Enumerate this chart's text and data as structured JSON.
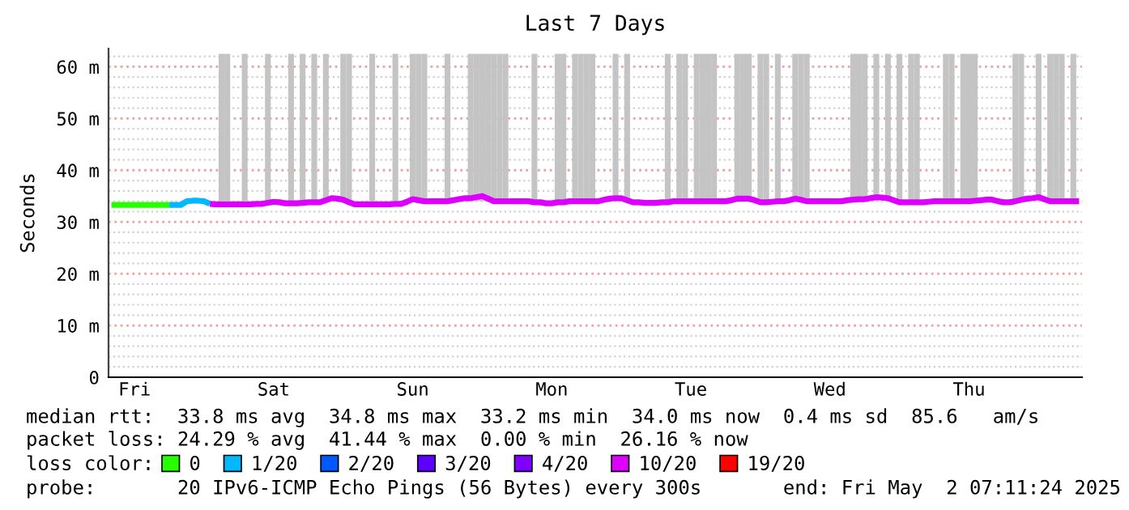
{
  "chart_data": {
    "type": "line",
    "title": "Last 7 Days",
    "ylabel": "Seconds",
    "legend_title": "loss color:",
    "categories": [
      null,
      null,
      null,
      null,
      "Fri",
      null,
      null,
      null,
      null,
      null,
      null,
      null,
      null,
      null,
      null,
      null,
      null,
      null,
      null,
      null,
      null,
      null,
      null,
      null,
      null,
      null,
      null,
      null,
      "Sat",
      null,
      null,
      null,
      null,
      null,
      null,
      null,
      null,
      null,
      null,
      null,
      null,
      null,
      null,
      null,
      null,
      null,
      null,
      null,
      null,
      null,
      null,
      null,
      "Sun",
      null,
      null,
      null,
      null,
      null,
      null,
      null,
      null,
      null,
      null,
      null,
      null,
      null,
      null,
      null,
      null,
      null,
      null,
      null,
      null,
      null,
      null,
      null,
      "Mon",
      null,
      null,
      null,
      null,
      null,
      null,
      null,
      null,
      null,
      null,
      null,
      null,
      null,
      null,
      null,
      null,
      null,
      null,
      null,
      null,
      null,
      null,
      null,
      "Tue",
      null,
      null,
      null,
      null,
      null,
      null,
      null,
      null,
      null,
      null,
      null,
      null,
      null,
      null,
      null,
      null,
      null,
      null,
      null,
      null,
      null,
      null,
      null,
      "Wed",
      null,
      null,
      null,
      null,
      null,
      null,
      null,
      null,
      null,
      null,
      null,
      null,
      null,
      null,
      null,
      null,
      null,
      null,
      null,
      null,
      null,
      null,
      null,
      "Thu",
      null,
      null,
      null,
      null,
      null,
      null,
      null,
      null,
      null,
      null,
      null,
      null,
      null,
      null,
      null,
      null,
      null,
      null,
      null
    ],
    "ylim": [
      0,
      63.5
    ],
    "yticks": [
      0,
      {
        "value": 2,
        "label": null
      },
      {
        "value": 4,
        "label": null
      },
      {
        "value": 6,
        "label": null
      },
      {
        "value": 8,
        "label": null
      },
      {
        "value": 10,
        "label": "10 m"
      },
      {
        "value": 12,
        "label": null
      },
      {
        "value": 14,
        "label": null
      },
      {
        "value": 16,
        "label": null
      },
      {
        "value": 18,
        "label": null
      },
      {
        "value": 20,
        "label": "20 m"
      },
      {
        "value": 22,
        "label": null
      },
      {
        "value": 24,
        "label": null
      },
      {
        "value": 26,
        "label": null
      },
      {
        "value": 28,
        "label": null
      },
      {
        "value": 30,
        "label": "30 m"
      },
      {
        "value": 32,
        "label": null
      },
      {
        "value": 34,
        "label": null
      },
      {
        "value": 36,
        "label": null
      },
      {
        "value": 38,
        "label": null
      },
      {
        "value": 40,
        "label": "40 m"
      },
      {
        "value": 42,
        "label": null
      },
      {
        "value": 44,
        "label": null
      },
      {
        "value": 46,
        "label": null
      },
      {
        "value": 48,
        "label": null
      },
      {
        "value": 50,
        "label": "50 m"
      },
      {
        "value": 52,
        "label": null
      },
      {
        "value": 54,
        "label": null
      },
      {
        "value": 56,
        "label": null
      },
      {
        "value": 58,
        "label": null
      },
      {
        "value": 60,
        "label": "60 m"
      },
      {
        "value": 62,
        "label": null
      }
    ],
    "grid": "y",
    "legend": "bottom",
    "marker": "none",
    "line_style": "solid",
    "ref_lines": [
      {
        "axis": "y",
        "value": 10,
        "color": "#f0a0a0",
        "line_style": "dotted"
      },
      {
        "axis": "y",
        "value": 20,
        "color": "#f0a0a0",
        "line_style": "dotted"
      },
      {
        "axis": "y",
        "value": 30,
        "color": "#f0a0a0",
        "line_style": "dotted"
      },
      {
        "axis": "y",
        "value": 40,
        "color": "#f0a0a0",
        "line_style": "dotted"
      },
      {
        "axis": "y",
        "value": 50,
        "color": "#f0a0a0",
        "line_style": "dotted"
      },
      {
        "axis": "y",
        "value": 60,
        "color": "#f0a0a0",
        "line_style": "dotted"
      }
    ],
    "series": [
      {
        "type": "bar",
        "color": "#c4c4c4",
        "values": [
          null,
          null,
          null,
          null,
          null,
          null,
          null,
          null,
          null,
          null,
          null,
          null,
          null,
          null,
          null,
          null,
          null,
          null,
          null,
          28.5,
          28.5,
          null,
          null,
          28.5,
          null,
          null,
          null,
          28.5,
          null,
          null,
          null,
          28.5,
          null,
          28.5,
          null,
          28.5,
          null,
          28.5,
          null,
          null,
          28.5,
          28.5,
          null,
          null,
          null,
          28.5,
          null,
          null,
          null,
          28.5,
          null,
          null,
          28.5,
          28.5,
          28.5,
          null,
          null,
          null,
          28.5,
          null,
          null,
          null,
          28.5,
          28.5,
          28.5,
          28.5,
          28.5,
          28.5,
          28.5,
          null,
          null,
          null,
          null,
          28.5,
          null,
          null,
          null,
          28.5,
          28.5,
          null,
          28.5,
          28.5,
          28.5,
          28.5,
          null,
          null,
          null,
          28.5,
          null,
          28.5,
          null,
          null,
          null,
          null,
          null,
          null,
          28.5,
          null,
          28.5,
          28.5,
          null,
          28.5,
          28.5,
          28.5,
          28.5,
          null,
          null,
          null,
          28.5,
          28.5,
          28.5,
          null,
          28.5,
          28.5,
          null,
          28.5,
          null,
          null,
          28.5,
          28.5,
          28.5,
          null,
          null,
          null,
          null,
          null,
          null,
          null,
          28.5,
          28.5,
          28.5,
          null,
          28.5,
          null,
          28.5,
          null,
          28.5,
          null,
          28.5,
          28.5,
          null,
          null,
          null,
          null,
          28.5,
          28.5,
          null,
          28.5,
          28.5,
          28.5,
          null,
          null,
          null,
          null,
          null,
          null,
          28.5,
          28.5,
          null,
          null,
          28.5,
          null,
          28.5,
          28.5,
          28.5,
          null,
          28.5,
          null
        ],
        "base": [
          null,
          null,
          null,
          null,
          null,
          null,
          null,
          null,
          null,
          null,
          null,
          null,
          null,
          null,
          null,
          null,
          null,
          null,
          null,
          34,
          34,
          null,
          null,
          34,
          null,
          null,
          null,
          34,
          null,
          null,
          null,
          34,
          null,
          34,
          null,
          34,
          null,
          34,
          null,
          null,
          34,
          34,
          null,
          null,
          null,
          34,
          null,
          null,
          null,
          34,
          null,
          null,
          34,
          34,
          34,
          null,
          null,
          null,
          34,
          null,
          null,
          null,
          34,
          34,
          34,
          34,
          34,
          34,
          34,
          null,
          null,
          null,
          null,
          34,
          null,
          null,
          null,
          34,
          34,
          null,
          34,
          34,
          34,
          34,
          null,
          null,
          null,
          34,
          null,
          34,
          null,
          null,
          null,
          null,
          null,
          null,
          34,
          null,
          34,
          34,
          null,
          34,
          34,
          34,
          34,
          null,
          null,
          null,
          34,
          34,
          34,
          null,
          34,
          34,
          null,
          34,
          null,
          null,
          34,
          34,
          34,
          null,
          null,
          null,
          null,
          null,
          null,
          null,
          34,
          34,
          34,
          null,
          34,
          null,
          34,
          null,
          34,
          null,
          34,
          34,
          null,
          null,
          null,
          null,
          34,
          34,
          null,
          34,
          34,
          34,
          null,
          null,
          null,
          null,
          null,
          null,
          34,
          34,
          null,
          null,
          34,
          null,
          34,
          34,
          34,
          null,
          34,
          null
        ]
      },
      {
        "name": "0",
        "color": "#26ff00",
        "values": [
          33.3,
          33.3,
          33.3,
          33.3,
          33.3,
          33.3,
          33.3,
          33.3,
          33.3,
          33.3,
          33.3,
          null,
          null,
          null,
          null,
          null,
          null,
          null,
          null,
          null,
          null,
          null,
          null,
          null,
          null,
          null,
          null,
          null,
          null,
          null,
          null,
          null,
          null,
          null,
          null,
          null,
          null,
          null,
          null,
          null,
          null,
          null,
          null,
          null,
          null,
          null,
          null,
          null,
          null,
          null,
          null,
          null,
          null,
          null,
          null,
          null,
          null,
          null,
          null,
          null,
          null,
          null,
          null,
          null,
          null,
          null,
          null,
          null,
          null,
          null,
          null,
          null,
          null,
          null,
          null,
          null,
          null,
          null,
          null,
          null,
          null,
          null,
          null,
          null,
          null,
          null,
          null,
          null,
          null,
          null,
          null,
          null,
          null,
          null,
          null,
          null,
          null,
          null,
          null,
          null,
          null,
          null,
          null,
          null,
          null,
          null,
          null,
          null,
          null,
          null,
          null,
          null,
          null,
          null,
          null,
          null,
          null,
          null,
          null,
          null,
          null,
          null,
          null,
          null,
          null,
          null,
          null,
          null,
          null,
          null,
          null,
          null,
          null,
          null,
          null,
          null,
          null,
          null,
          null,
          null,
          null,
          null,
          null,
          null,
          null,
          null,
          null,
          null,
          null,
          null,
          null,
          null,
          null,
          null,
          null,
          null,
          null,
          null,
          null,
          null,
          null,
          null,
          null,
          null,
          null,
          null,
          null,
          null
        ]
      },
      {
        "name": "1/20",
        "color": "#00b8ff",
        "values": [
          null,
          null,
          null,
          null,
          null,
          null,
          null,
          null,
          null,
          null,
          33.3,
          33.3,
          33.3,
          34.0,
          34.1,
          34.1,
          34.0,
          33.5,
          null,
          null,
          null,
          null,
          null,
          null,
          null,
          null,
          null,
          null,
          null,
          null,
          null,
          null,
          null,
          null,
          null,
          null,
          null,
          null,
          null,
          null,
          null,
          null,
          null,
          null,
          null,
          null,
          null,
          null,
          null,
          null,
          null,
          null,
          null,
          null,
          null,
          null,
          null,
          null,
          null,
          null,
          null,
          null,
          null,
          null,
          null,
          null,
          null,
          null,
          null,
          null,
          null,
          null,
          null,
          null,
          null,
          null,
          null,
          null,
          null,
          null,
          null,
          null,
          null,
          null,
          null,
          null,
          null,
          null,
          null,
          null,
          null,
          null,
          null,
          null,
          null,
          null,
          null,
          null,
          null,
          null,
          null,
          null,
          null,
          null,
          null,
          null,
          null,
          null,
          null,
          null,
          null,
          null,
          null,
          null,
          null,
          null,
          null,
          null,
          null,
          null,
          null,
          null,
          null,
          null,
          null,
          null,
          null,
          null,
          null,
          null,
          null,
          null,
          null,
          null,
          null,
          null,
          null,
          null,
          null,
          null,
          null,
          null,
          null,
          null,
          null,
          null,
          null,
          null,
          null,
          null,
          null,
          null,
          null,
          null,
          null,
          null,
          null,
          null,
          null,
          null,
          null,
          null,
          null,
          null,
          null,
          null,
          null,
          null
        ]
      },
      {
        "name": "2/20",
        "color": "#0059ff",
        "values": [
          null,
          null,
          null,
          null,
          null,
          null,
          null,
          null,
          null,
          null,
          null,
          null,
          null,
          null,
          null,
          null,
          null,
          null,
          null,
          null,
          null,
          null,
          null,
          null,
          null,
          null,
          null,
          null,
          null,
          null,
          null,
          null,
          null,
          null,
          null,
          null,
          null,
          null,
          null,
          null,
          null,
          null,
          null,
          null,
          null,
          null,
          null,
          null,
          null,
          null,
          null,
          null,
          null,
          null,
          null,
          null,
          null,
          null,
          null,
          null,
          null,
          null,
          null,
          null,
          null,
          null,
          null,
          null,
          null,
          null,
          null,
          null,
          null,
          null,
          null,
          null,
          null,
          null,
          null,
          null,
          null,
          null,
          null,
          null,
          null,
          null,
          null,
          null,
          null,
          null,
          null,
          null,
          null,
          null,
          null,
          null,
          null,
          null,
          null,
          null,
          null,
          null,
          null,
          null,
          null,
          null,
          null,
          null,
          null,
          null,
          null,
          null,
          null,
          null,
          null,
          null,
          null,
          null,
          null,
          null,
          null,
          null,
          null,
          null,
          null,
          null,
          null,
          null,
          null,
          null,
          null,
          null,
          null,
          null,
          null,
          null,
          null,
          null,
          null,
          null,
          null,
          null,
          null,
          null,
          null,
          null,
          null,
          null,
          null,
          null,
          null,
          null,
          null,
          null,
          null,
          null,
          null,
          null,
          null,
          null,
          null,
          null,
          null,
          null,
          null,
          null,
          null,
          null
        ]
      },
      {
        "name": "3/20",
        "color": "#5e00ff",
        "values": [
          null,
          null,
          null,
          null,
          null,
          null,
          null,
          null,
          null,
          null,
          null,
          null,
          null,
          null,
          null,
          null,
          null,
          null,
          null,
          null,
          null,
          null,
          null,
          null,
          null,
          null,
          null,
          null,
          null,
          null,
          null,
          null,
          null,
          null,
          null,
          null,
          null,
          null,
          null,
          null,
          null,
          null,
          null,
          null,
          null,
          null,
          null,
          null,
          null,
          null,
          null,
          null,
          null,
          null,
          null,
          null,
          null,
          null,
          null,
          null,
          null,
          null,
          null,
          null,
          null,
          null,
          null,
          null,
          null,
          null,
          null,
          null,
          null,
          null,
          null,
          null,
          null,
          null,
          null,
          null,
          null,
          null,
          null,
          null,
          null,
          null,
          null,
          null,
          null,
          null,
          null,
          null,
          null,
          null,
          null,
          null,
          null,
          null,
          null,
          null,
          null,
          null,
          null,
          null,
          null,
          null,
          null,
          null,
          null,
          null,
          null,
          null,
          null,
          null,
          null,
          null,
          null,
          null,
          null,
          null,
          null,
          null,
          null,
          null,
          null,
          null,
          null,
          null,
          null,
          null,
          null,
          null,
          null,
          null,
          null,
          null,
          null,
          null,
          null,
          null,
          null,
          null,
          null,
          null,
          null,
          null,
          null,
          null,
          null,
          null,
          null,
          null,
          null,
          null,
          null,
          null,
          null,
          null,
          null,
          null,
          null,
          null,
          null,
          null,
          null,
          null,
          null,
          null
        ]
      },
      {
        "name": "4/20",
        "color": "#7e00ff",
        "values": [
          null,
          null,
          null,
          null,
          null,
          null,
          null,
          null,
          null,
          null,
          null,
          null,
          null,
          null,
          null,
          null,
          null,
          null,
          null,
          null,
          null,
          null,
          null,
          null,
          null,
          null,
          null,
          null,
          null,
          null,
          null,
          null,
          null,
          null,
          null,
          null,
          null,
          null,
          null,
          null,
          null,
          null,
          null,
          null,
          null,
          null,
          null,
          null,
          null,
          null,
          null,
          null,
          null,
          null,
          null,
          null,
          null,
          null,
          null,
          null,
          null,
          null,
          null,
          null,
          null,
          null,
          null,
          null,
          null,
          null,
          null,
          null,
          null,
          null,
          null,
          null,
          null,
          null,
          null,
          null,
          null,
          null,
          null,
          null,
          null,
          null,
          null,
          null,
          null,
          null,
          null,
          null,
          null,
          null,
          null,
          null,
          null,
          null,
          null,
          null,
          null,
          null,
          null,
          null,
          null,
          null,
          null,
          null,
          null,
          null,
          null,
          null,
          null,
          null,
          null,
          null,
          null,
          null,
          null,
          null,
          null,
          null,
          null,
          null,
          null,
          null,
          null,
          null,
          null,
          null,
          null,
          null,
          null,
          null,
          null,
          null,
          null,
          null,
          null,
          null,
          null,
          null,
          null,
          null,
          null,
          null,
          null,
          null,
          null,
          null,
          null,
          null,
          null,
          null,
          null,
          null,
          null,
          null,
          null,
          null,
          null,
          null,
          null,
          null,
          null,
          null,
          null,
          null
        ]
      },
      {
        "name": "10/20",
        "color": "#dd00ff",
        "values": [
          null,
          null,
          null,
          null,
          null,
          null,
          null,
          null,
          null,
          null,
          null,
          null,
          null,
          null,
          null,
          null,
          null,
          33.5,
          33.4,
          33.4,
          33.4,
          33.4,
          33.4,
          33.4,
          33.4,
          33.5,
          33.5,
          33.7,
          33.9,
          33.8,
          33.6,
          33.6,
          33.6,
          33.7,
          33.8,
          33.8,
          33.8,
          34.2,
          34.6,
          34.5,
          34.3,
          33.8,
          33.4,
          33.4,
          33.4,
          33.4,
          33.4,
          33.4,
          33.4,
          33.5,
          33.5,
          33.9,
          34.4,
          34.2,
          34.0,
          34.0,
          34.0,
          34.0,
          34.0,
          34.2,
          34.4,
          34.6,
          34.6,
          34.8,
          35.0,
          34.5,
          34.0,
          34.0,
          34.0,
          34.0,
          34.0,
          34.0,
          34.0,
          33.8,
          33.8,
          33.6,
          33.6,
          33.8,
          33.8,
          34.0,
          34.0,
          34.0,
          34.0,
          34.0,
          34.0,
          34.3,
          34.5,
          34.6,
          34.6,
          34.2,
          33.8,
          33.8,
          33.7,
          33.7,
          33.7,
          33.8,
          33.8,
          34.0,
          34.0,
          34.0,
          34.0,
          34.0,
          34.0,
          34.0,
          34.0,
          34.0,
          34.0,
          34.2,
          34.5,
          34.5,
          34.5,
          34.2,
          33.8,
          33.8,
          33.9,
          34.0,
          34.0,
          34.2,
          34.5,
          34.3,
          34.0,
          34.0,
          34.0,
          34.0,
          34.0,
          34.0,
          34.0,
          34.2,
          34.3,
          34.4,
          34.4,
          34.6,
          34.8,
          34.7,
          34.6,
          34.2,
          33.8,
          33.8,
          33.8,
          33.8,
          33.8,
          33.9,
          34.0,
          34.0,
          34.0,
          34.0,
          34.0,
          34.0,
          34.0,
          34.1,
          34.2,
          34.3,
          34.3,
          34.0,
          33.8,
          33.8,
          34.0,
          34.3,
          34.5,
          34.6,
          34.8,
          34.4,
          34.0,
          34.0,
          34.0,
          34.0,
          34.0,
          34.0
        ]
      },
      {
        "name": "19/20",
        "color": "#ff0000",
        "values": [
          null,
          null,
          null,
          null,
          null,
          null,
          null,
          null,
          null,
          null,
          null,
          null,
          null,
          null,
          null,
          null,
          null,
          null,
          null,
          null,
          null,
          null,
          null,
          null,
          null,
          null,
          null,
          null,
          null,
          null,
          null,
          null,
          null,
          null,
          null,
          null,
          null,
          null,
          null,
          null,
          null,
          null,
          null,
          null,
          null,
          null,
          null,
          null,
          null,
          null,
          null,
          null,
          null,
          null,
          null,
          null,
          null,
          null,
          null,
          null,
          null,
          null,
          null,
          null,
          null,
          null,
          null,
          null,
          null,
          null,
          null,
          null,
          null,
          null,
          null,
          null,
          null,
          null,
          null,
          null,
          null,
          null,
          null,
          null,
          null,
          null,
          null,
          null,
          null,
          null,
          null,
          null,
          null,
          null,
          null,
          null,
          null,
          null,
          null,
          null,
          null,
          null,
          null,
          null,
          null,
          null,
          null,
          null,
          null,
          null,
          null,
          null,
          null,
          null,
          null,
          null,
          null,
          null,
          null,
          null,
          null,
          null,
          null,
          null,
          null,
          null,
          null,
          null,
          null,
          null,
          null,
          null,
          null,
          null,
          null,
          null,
          null,
          null,
          null,
          null,
          null,
          null,
          null,
          null,
          null,
          null,
          null,
          null,
          null,
          null,
          null,
          null,
          null,
          null,
          null,
          null,
          null,
          null,
          null,
          null,
          null,
          null,
          null,
          null,
          null,
          null,
          null,
          null
        ]
      }
    ],
    "annotations": [
      "median rtt:  33.8 ms avg  34.8 ms max  33.2 ms min  34.0 ms now  0.4 ms sd  85.6   am/s",
      "packet loss: 24.29 % avg  41.44 % max  0.00 % min  26.16 % now",
      "probe:       20 IPv6-ICMP Echo Pings (56 Bytes) every 300s       end: Fri May  2 07:11:24 2025"
    ]
  }
}
